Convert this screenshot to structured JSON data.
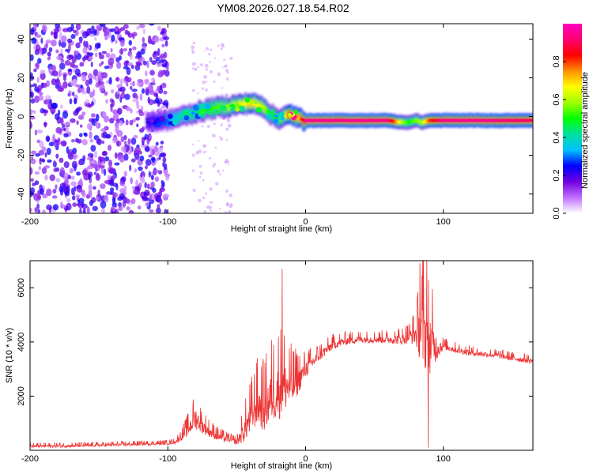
{
  "title": "YM08.2026.027.18.54.R02",
  "chart_data": [
    {
      "type": "heatmap",
      "name": "spectrogram",
      "xlabel": "Height of straight line (km)",
      "ylabel": "Frequency (Hz)",
      "xlim": [
        -200,
        165
      ],
      "ylim": [
        -50,
        48
      ],
      "x_ticks": [
        -200,
        -100,
        0,
        100
      ],
      "y_ticks": [
        -40,
        -20,
        0,
        20,
        40
      ],
      "colorbar": {
        "label": "Normalized spectral amplitude",
        "range": [
          0,
          1
        ],
        "ticks": [
          0.0,
          0.2,
          0.4,
          0.6,
          0.8
        ],
        "tick_labels": [
          "0.0",
          "0.2",
          "0.4",
          "0.6",
          "0.8"
        ],
        "colors": [
          "#ffffff",
          "#c070ff",
          "#7000e0",
          "#0000ff",
          "#00c0ff",
          "#00e0a0",
          "#00ff00",
          "#a0ff00",
          "#ffff00",
          "#ff9000",
          "#ff0000",
          "#ff0070",
          "#ff00c0"
        ]
      },
      "ridge": {
        "x": [
          -115,
          -100,
          -90,
          -80,
          -70,
          -60,
          -50,
          -40,
          -30,
          -25,
          -20,
          -15,
          -10,
          -5,
          0,
          20,
          40,
          60,
          70,
          75,
          80,
          85,
          90,
          100,
          110,
          130,
          165
        ],
        "y": [
          -3,
          -2,
          0,
          2,
          4,
          5,
          6,
          7,
          5,
          1,
          -1,
          0,
          1,
          -1,
          -2,
          -2,
          -2,
          -2,
          -3,
          -3,
          -2,
          -3,
          -2,
          -2,
          -2,
          -2,
          -2
        ],
        "amplitude": [
          0.2,
          0.3,
          0.4,
          0.45,
          0.5,
          0.55,
          0.6,
          0.7,
          0.6,
          0.45,
          0.5,
          0.6,
          0.95,
          0.7,
          0.95,
          0.95,
          0.95,
          0.95,
          0.6,
          0.5,
          0.55,
          0.6,
          0.8,
          0.95,
          0.95,
          0.95,
          0.9
        ]
      },
      "noise_region": {
        "x": [
          -200,
          -100
        ],
        "y": [
          -50,
          48
        ]
      }
    },
    {
      "type": "line",
      "name": "snr",
      "xlabel": "Height of straight line (km)",
      "ylabel": "SNR (10 * v/v)",
      "xlim": [
        -200,
        165
      ],
      "ylim": [
        0,
        7000
      ],
      "x_ticks": [
        -200,
        -100,
        0,
        100
      ],
      "y_ticks": [
        2000,
        4000,
        6000
      ],
      "color": "#ee3333",
      "x": [
        -200,
        -180,
        -160,
        -140,
        -120,
        -100,
        -95,
        -90,
        -85,
        -80,
        -75,
        -70,
        -65,
        -60,
        -55,
        -50,
        -45,
        -40,
        -35,
        -30,
        -25,
        -20,
        -15,
        -10,
        -5,
        0,
        10,
        20,
        30,
        40,
        50,
        60,
        70,
        75,
        80,
        85,
        90,
        95,
        100,
        110,
        120,
        130,
        140,
        150,
        165
      ],
      "y": [
        150,
        160,
        170,
        200,
        230,
        260,
        300,
        500,
        800,
        1200,
        900,
        700,
        550,
        450,
        400,
        300,
        700,
        1200,
        1700,
        1500,
        2000,
        2200,
        2400,
        2300,
        2600,
        3000,
        3500,
        3900,
        4050,
        4100,
        4100,
        4100,
        4100,
        4200,
        4300,
        4350,
        4000,
        3800,
        3850,
        3700,
        3600,
        3550,
        3500,
        3400,
        3300
      ],
      "noise_amp": [
        80,
        80,
        80,
        80,
        80,
        80,
        100,
        200,
        400,
        600,
        400,
        300,
        250,
        200,
        150,
        150,
        600,
        900,
        1100,
        1200,
        1400,
        1600,
        1400,
        1000,
        700,
        450,
        300,
        250,
        220,
        200,
        200,
        220,
        300,
        350,
        600,
        2000,
        1700,
        700,
        200,
        180,
        160,
        150,
        150,
        150,
        150
      ],
      "spikes": [
        {
          "x": -17,
          "y": 6700
        },
        {
          "x": 83,
          "y": 6900
        },
        {
          "x": 88,
          "y": 7000
        },
        {
          "x": 89,
          "y": 100
        }
      ]
    }
  ]
}
